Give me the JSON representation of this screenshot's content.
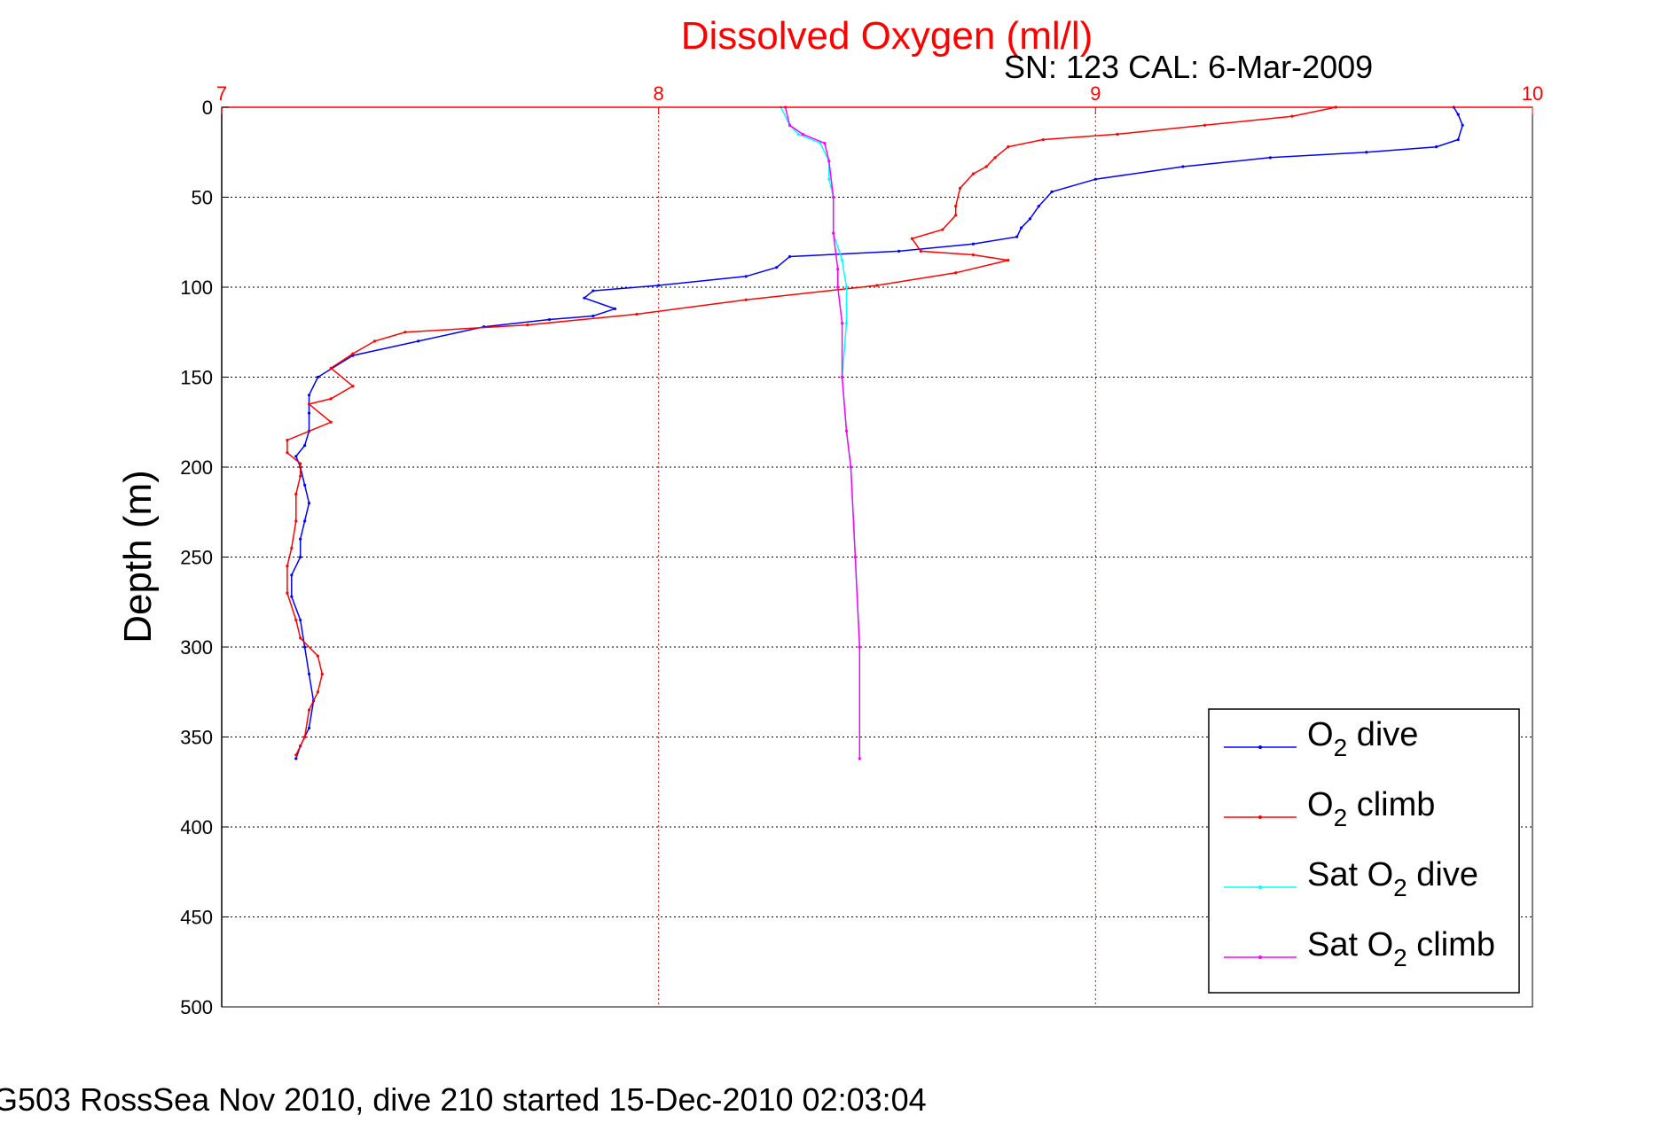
{
  "chart_data": {
    "type": "line",
    "title": "Dissolved Oxygen (ml/l)",
    "subtitle": "SN: 123  CAL: 6-Mar-2009",
    "caption": "G503 RossSea Nov 2010, dive 210 started 15-Dec-2010 02:03:04",
    "xlabel": "",
    "ylabel": "Depth (m)",
    "xlim": [
      7,
      10
    ],
    "ylim": [
      0,
      500
    ],
    "y_reversed": true,
    "x_axis_position": "top",
    "x_ticks": [
      7,
      8,
      9,
      10
    ],
    "y_ticks": [
      0,
      50,
      100,
      150,
      200,
      250,
      300,
      350,
      400,
      450,
      500
    ],
    "grid": true,
    "legend_position": "bottom-right",
    "colors": {
      "title": "#ff0000",
      "x_ticks": "#ff0000",
      "x_grid": "#ff0000",
      "y_grid": "#000000",
      "axes": "#000000"
    },
    "series": [
      {
        "name": "O2 dive",
        "legend": {
          "main": "O",
          "sub": "2",
          "rest": " dive"
        },
        "color": "#0000ff",
        "points": [
          [
            9.82,
            0
          ],
          [
            9.83,
            4
          ],
          [
            9.84,
            10
          ],
          [
            9.83,
            18
          ],
          [
            9.78,
            22
          ],
          [
            9.62,
            25
          ],
          [
            9.4,
            28
          ],
          [
            9.2,
            33
          ],
          [
            9.0,
            40
          ],
          [
            8.9,
            47
          ],
          [
            8.87,
            55
          ],
          [
            8.85,
            62
          ],
          [
            8.83,
            67
          ],
          [
            8.82,
            72
          ],
          [
            8.72,
            76
          ],
          [
            8.55,
            80
          ],
          [
            8.3,
            83
          ],
          [
            8.27,
            89
          ],
          [
            8.2,
            94
          ],
          [
            8.0,
            99
          ],
          [
            7.85,
            102
          ],
          [
            7.83,
            106
          ],
          [
            7.9,
            112
          ],
          [
            7.85,
            116
          ],
          [
            7.75,
            118
          ],
          [
            7.6,
            122
          ],
          [
            7.45,
            130
          ],
          [
            7.3,
            138
          ],
          [
            7.22,
            150
          ],
          [
            7.2,
            160
          ],
          [
            7.2,
            170
          ],
          [
            7.2,
            180
          ],
          [
            7.19,
            188
          ],
          [
            7.17,
            194
          ],
          [
            7.18,
            200
          ],
          [
            7.19,
            210
          ],
          [
            7.2,
            220
          ],
          [
            7.19,
            230
          ],
          [
            7.18,
            240
          ],
          [
            7.18,
            250
          ],
          [
            7.16,
            260
          ],
          [
            7.16,
            272
          ],
          [
            7.18,
            285
          ],
          [
            7.19,
            300
          ],
          [
            7.2,
            315
          ],
          [
            7.21,
            330
          ],
          [
            7.2,
            345
          ],
          [
            7.18,
            355
          ],
          [
            7.17,
            362
          ]
        ]
      },
      {
        "name": "O2 climb",
        "legend": {
          "main": "O",
          "sub": "2",
          "rest": " climb"
        },
        "color": "#ff0000",
        "points": [
          [
            9.55,
            0
          ],
          [
            9.45,
            5
          ],
          [
            9.25,
            10
          ],
          [
            9.05,
            15
          ],
          [
            8.88,
            18
          ],
          [
            8.8,
            22
          ],
          [
            8.77,
            28
          ],
          [
            8.75,
            33
          ],
          [
            8.72,
            37
          ],
          [
            8.69,
            45
          ],
          [
            8.68,
            55
          ],
          [
            8.68,
            60
          ],
          [
            8.65,
            68
          ],
          [
            8.58,
            73
          ],
          [
            8.6,
            80
          ],
          [
            8.72,
            82
          ],
          [
            8.8,
            85
          ],
          [
            8.68,
            92
          ],
          [
            8.5,
            99
          ],
          [
            8.2,
            107
          ],
          [
            7.95,
            115
          ],
          [
            7.7,
            121
          ],
          [
            7.42,
            125
          ],
          [
            7.35,
            130
          ],
          [
            7.3,
            137
          ],
          [
            7.25,
            145
          ],
          [
            7.3,
            155
          ],
          [
            7.25,
            162
          ],
          [
            7.2,
            165
          ],
          [
            7.25,
            175
          ],
          [
            7.15,
            185
          ],
          [
            7.15,
            192
          ],
          [
            7.18,
            198
          ],
          [
            7.18,
            205
          ],
          [
            7.17,
            215
          ],
          [
            7.17,
            230
          ],
          [
            7.16,
            245
          ],
          [
            7.15,
            255
          ],
          [
            7.15,
            270
          ],
          [
            7.17,
            285
          ],
          [
            7.18,
            295
          ],
          [
            7.22,
            305
          ],
          [
            7.23,
            315
          ],
          [
            7.22,
            325
          ],
          [
            7.2,
            335
          ],
          [
            7.19,
            350
          ],
          [
            7.17,
            360
          ]
        ]
      },
      {
        "name": "Sat O2 dive",
        "legend": {
          "main": "Sat O",
          "sub": "2",
          "rest": " dive"
        },
        "color": "#00ffff",
        "points": [
          [
            8.28,
            0
          ],
          [
            8.3,
            10
          ],
          [
            8.32,
            15
          ],
          [
            8.37,
            20
          ],
          [
            8.39,
            30
          ],
          [
            8.39,
            40
          ],
          [
            8.4,
            50
          ],
          [
            8.4,
            70
          ],
          [
            8.42,
            85
          ],
          [
            8.43,
            100
          ],
          [
            8.43,
            120
          ],
          [
            8.42,
            150
          ],
          [
            8.43,
            180
          ],
          [
            8.44,
            200
          ],
          [
            8.45,
            250
          ],
          [
            8.46,
            300
          ],
          [
            8.46,
            362
          ]
        ]
      },
      {
        "name": "Sat O2 climb",
        "legend": {
          "main": "Sat O",
          "sub": "2",
          "rest": " climb"
        },
        "color": "#ff00ff",
        "points": [
          [
            8.29,
            0
          ],
          [
            8.3,
            10
          ],
          [
            8.33,
            15
          ],
          [
            8.38,
            20
          ],
          [
            8.39,
            30
          ],
          [
            8.4,
            50
          ],
          [
            8.4,
            70
          ],
          [
            8.41,
            90
          ],
          [
            8.41,
            100
          ],
          [
            8.42,
            120
          ],
          [
            8.42,
            150
          ],
          [
            8.43,
            180
          ],
          [
            8.44,
            200
          ],
          [
            8.45,
            250
          ],
          [
            8.46,
            300
          ],
          [
            8.46,
            362
          ]
        ]
      }
    ]
  }
}
